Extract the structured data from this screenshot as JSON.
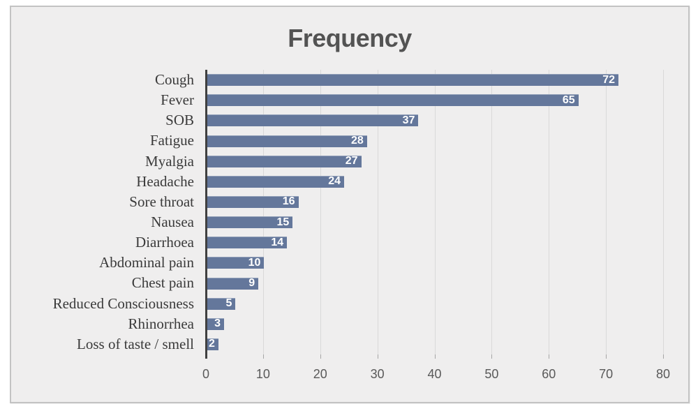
{
  "title": "Frequency",
  "chart_data": {
    "type": "bar",
    "orientation": "horizontal",
    "title": "Frequency",
    "categories": [
      "Cough",
      "Fever",
      "SOB",
      "Fatigue",
      "Myalgia",
      "Headache",
      "Sore throat",
      "Nausea",
      "Diarrhoea",
      "Abdominal pain",
      "Chest pain",
      "Reduced Consciousness",
      "Rhinorrhea",
      "Loss of taste / smell"
    ],
    "values": [
      72,
      65,
      37,
      28,
      27,
      24,
      16,
      15,
      14,
      10,
      9,
      5,
      3,
      2
    ],
    "xlabel": "",
    "ylabel": "",
    "xlim": [
      0,
      80
    ],
    "x_ticks": [
      0,
      10,
      20,
      30,
      40,
      50,
      60,
      70,
      80
    ],
    "grid": true,
    "legend": false,
    "value_labels_position": "inside-end",
    "colors": {
      "bar": "#64779b",
      "background": "#efeeee",
      "frame_border": "#c3c3c3",
      "gridline": "#d9d9d9",
      "axis_line": "#404040",
      "title_text": "#535353",
      "tick_label_text": "#595959",
      "category_label_text": "#3a3a3a",
      "value_label_text": "#ffffff"
    }
  }
}
